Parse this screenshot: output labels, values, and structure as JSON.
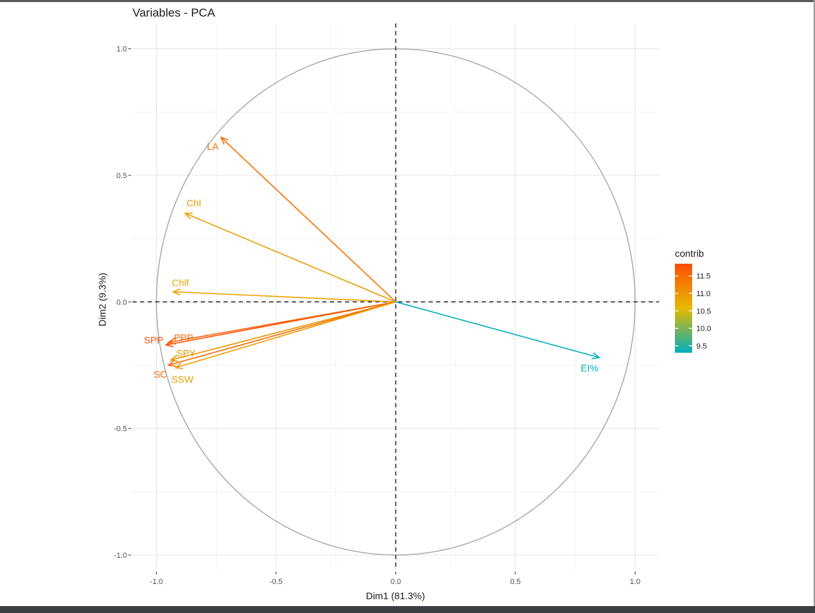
{
  "chart_data": {
    "type": "scatter",
    "title": "Variables - PCA",
    "xlabel": "Dim1 (81.3%)",
    "ylabel": "Dim2 (9.3%)",
    "xlim": [
      -1.1,
      1.1
    ],
    "ylim": [
      -1.06,
      1.1
    ],
    "x_ticks": [
      -1.0,
      -0.5,
      0.0,
      0.5,
      1.0
    ],
    "x_tick_labels": [
      "-1.0",
      "-0.5",
      "0.0",
      "0.5",
      "1.0"
    ],
    "y_ticks": [
      -1.0,
      -0.5,
      0.0,
      0.5,
      1.0
    ],
    "y_tick_labels": [
      "-1.0",
      "-0.5",
      "0.0",
      "0.5",
      "1.0"
    ],
    "grid": true,
    "correlation_circle": true,
    "variables": [
      {
        "name": "LA",
        "x": -0.73,
        "y": 0.65,
        "contrib": 11.4
      },
      {
        "name": "Chl",
        "x": -0.88,
        "y": 0.35,
        "contrib": 10.9
      },
      {
        "name": "Chlf",
        "x": -0.93,
        "y": 0.04,
        "contrib": 10.8
      },
      {
        "name": "SPP",
        "x": -0.96,
        "y": -0.17,
        "contrib": 11.8
      },
      {
        "name": "PPP",
        "x": -0.95,
        "y": -0.16,
        "contrib": 11.6
      },
      {
        "name": "SPY",
        "x": -0.94,
        "y": -0.23,
        "contrib": 11.0
      },
      {
        "name": "SC",
        "x": -0.95,
        "y": -0.25,
        "contrib": 11.5
      },
      {
        "name": "SSW",
        "x": -0.92,
        "y": -0.26,
        "contrib": 10.9
      },
      {
        "name": "EI%",
        "x": 0.85,
        "y": -0.22,
        "contrib": 9.3
      }
    ],
    "legend": {
      "title": "contrib",
      "placement": "right",
      "range": [
        9.3,
        11.85
      ],
      "ticks": [
        9.5,
        10.0,
        10.5,
        11.0,
        11.5
      ],
      "tick_labels": [
        "9.5",
        "10.0",
        "10.5",
        "11.0",
        "11.5"
      ],
      "gradient_colors": [
        "#00AFBB",
        "#E7B800",
        "#FC4E07"
      ]
    }
  }
}
